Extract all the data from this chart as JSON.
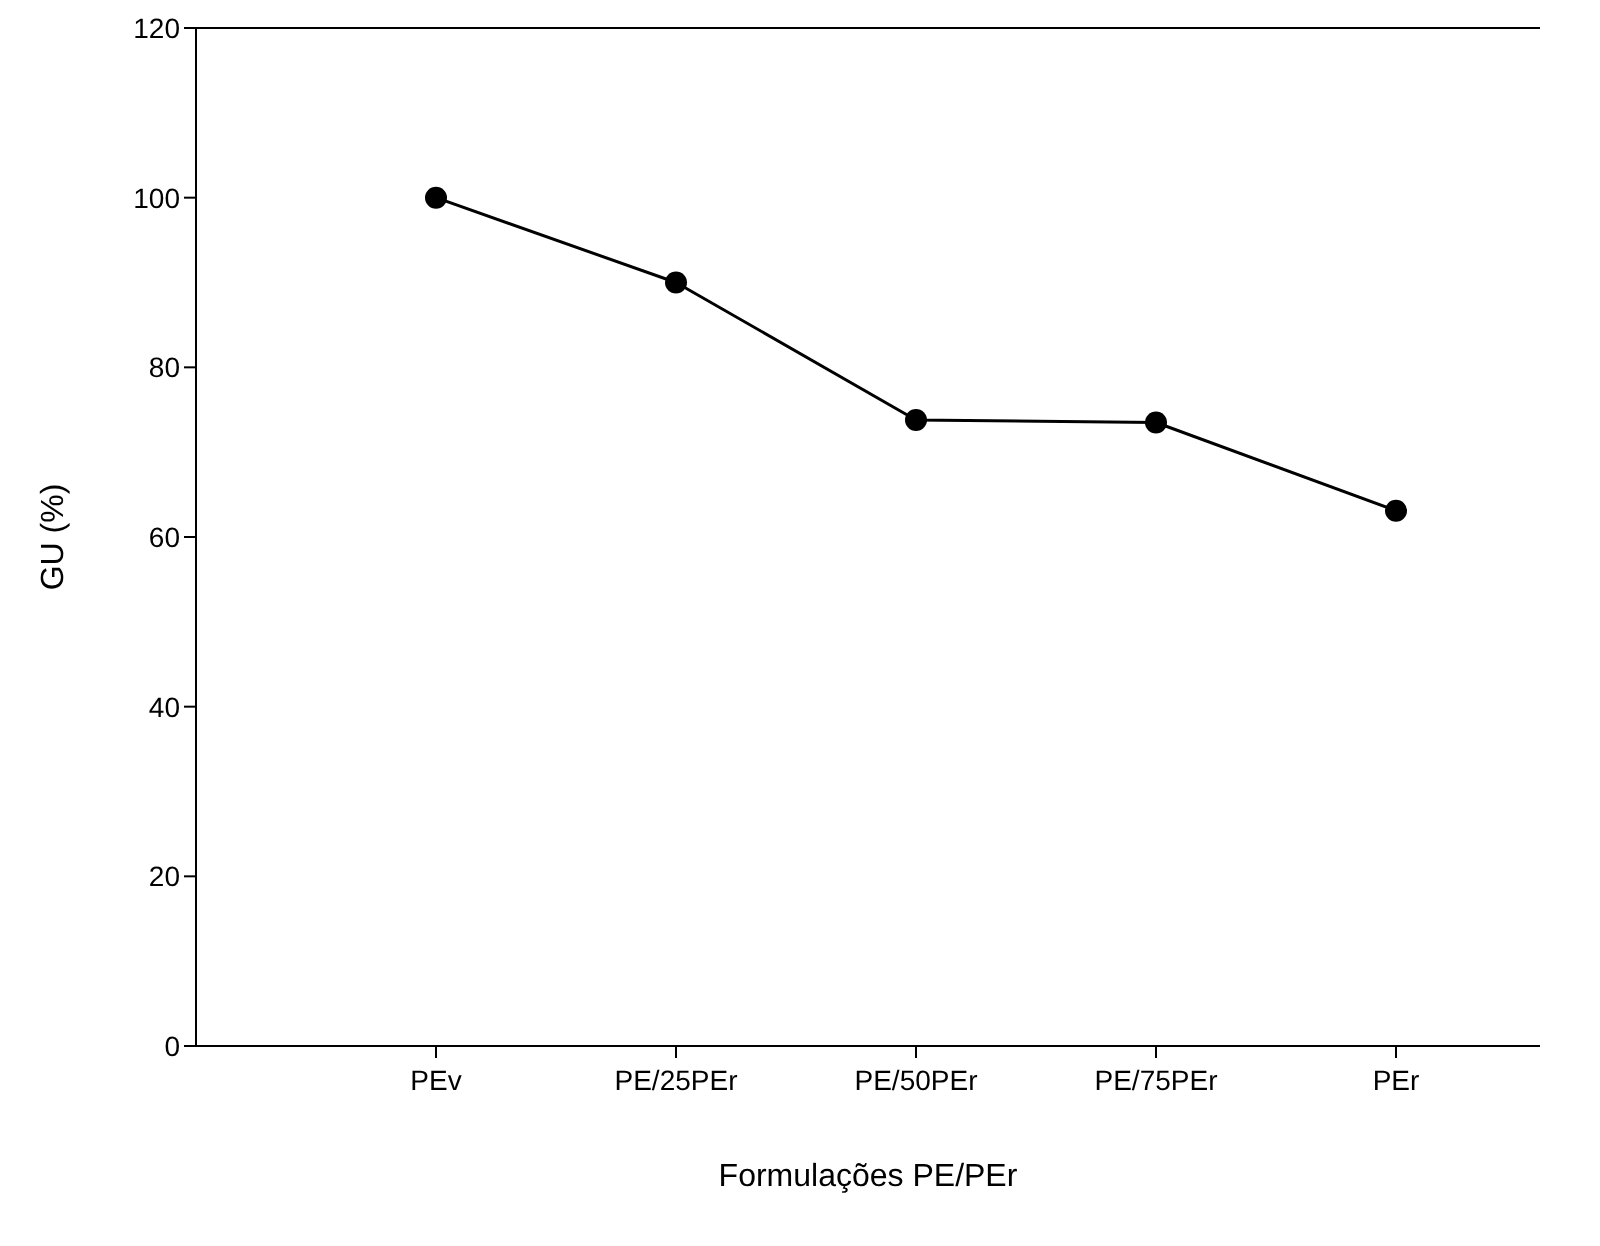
{
  "chart_data": {
    "type": "line",
    "xlabel": "Formulações PE/PEr",
    "ylabel": "GU (%)",
    "categories": [
      "PEv",
      "PE/25PEr",
      "PE/50PEr",
      "PE/75PEr",
      "PEr"
    ],
    "series": [
      {
        "color": "#000000",
        "values": [
          100,
          90,
          73.8,
          73.5,
          63.1
        ]
      }
    ],
    "ylim": [
      0,
      120
    ],
    "yticks": [
      0,
      20,
      40,
      60,
      80,
      100,
      120
    ],
    "marker": "circle",
    "line_style": "solid",
    "grid": false,
    "legend": false
  }
}
